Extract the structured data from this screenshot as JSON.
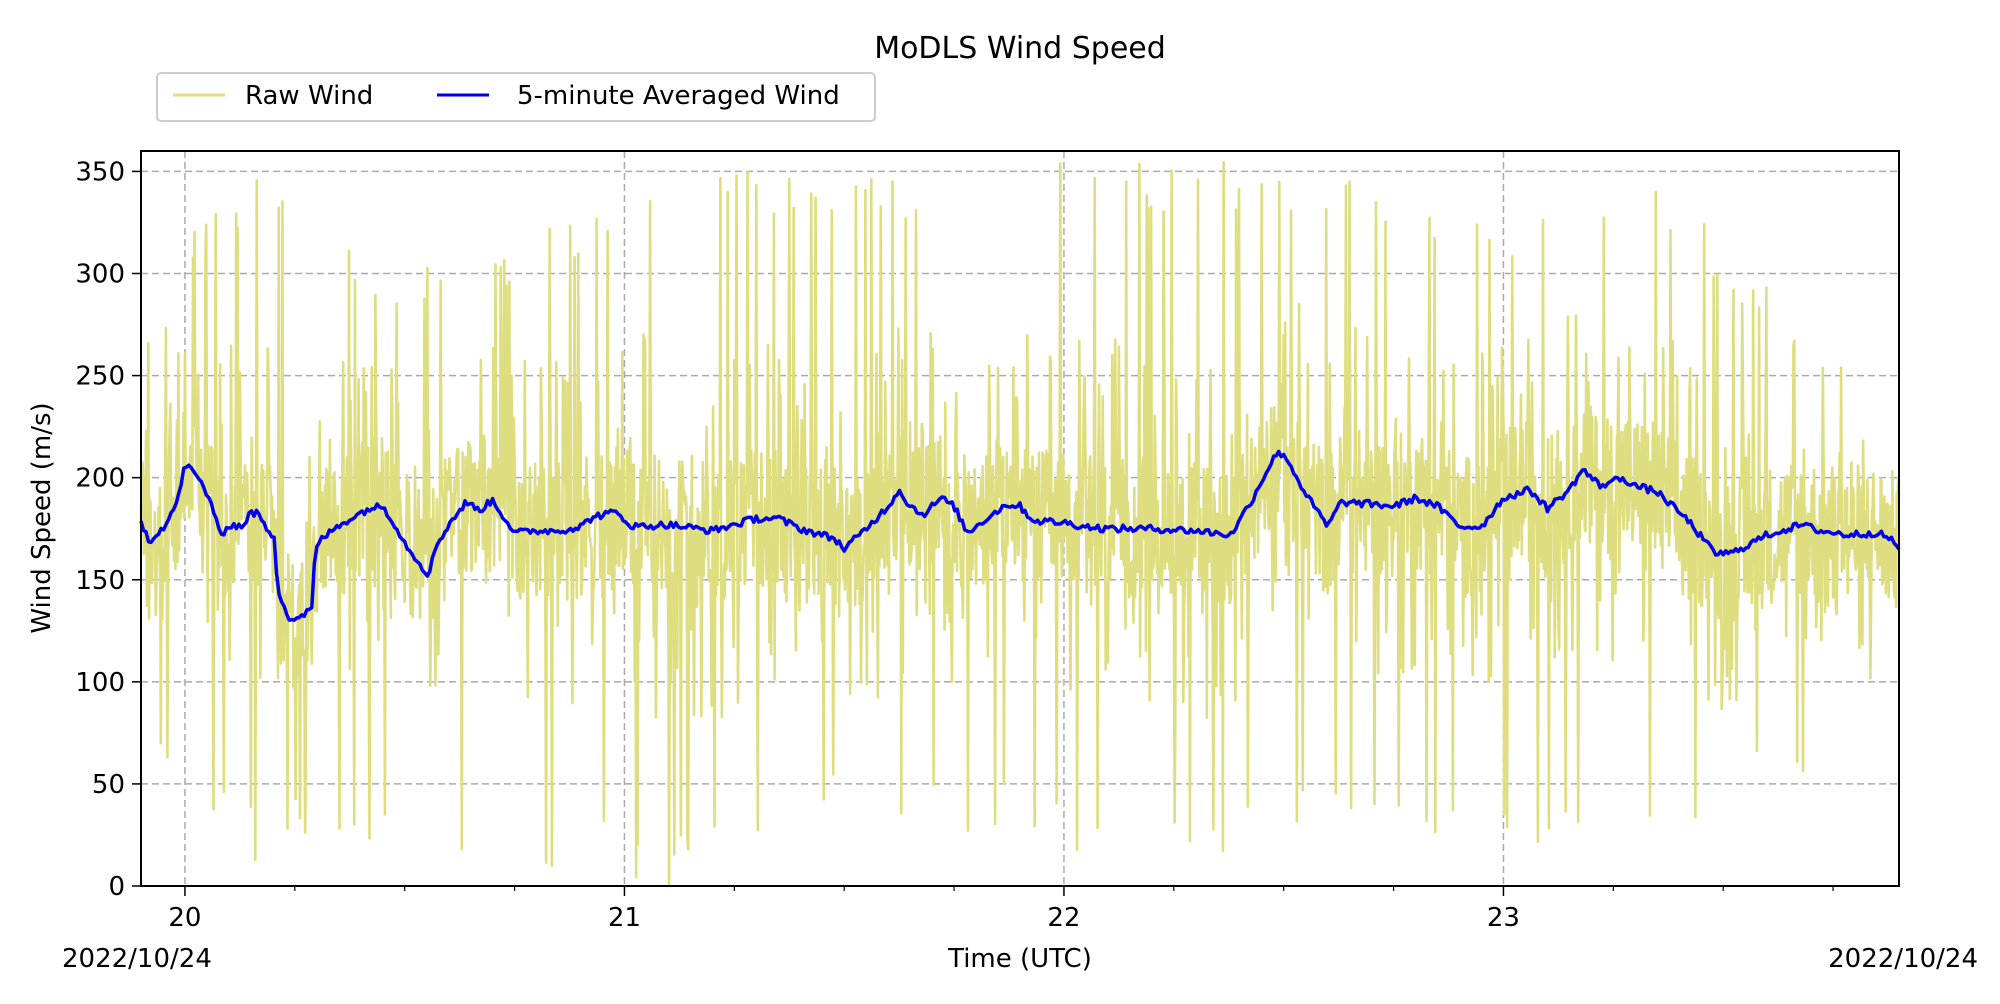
{
  "chart_data": {
    "type": "line",
    "title": "MoDLS Wind Speed",
    "xlabel": "Time (UTC)",
    "ylabel": "Wind Speed (m/s)",
    "x_range_days": [
      19.9,
      23.9
    ],
    "ylim": [
      0,
      360
    ],
    "y_ticks": [
      0,
      50,
      100,
      150,
      200,
      250,
      300,
      350
    ],
    "x_ticks": [
      {
        "value": 20,
        "label": "20"
      },
      {
        "value": 21,
        "label": "21"
      },
      {
        "value": 22,
        "label": "22"
      },
      {
        "value": 23,
        "label": "23"
      }
    ],
    "x_minor_step_days": 0.25,
    "date_left": "2022/10/24",
    "date_right": "2022/10/24",
    "grid": true,
    "legend": {
      "placement": "top-left, above plot",
      "columns": 2
    },
    "series": [
      {
        "name": "Raw Wind",
        "color": "#dede80",
        "style": "dense noisy line",
        "envelope": [
          {
            "x": 19.9,
            "low": 90,
            "high": 260
          },
          {
            "x": 20.0,
            "low": 40,
            "high": 325
          },
          {
            "x": 20.2,
            "low": 0,
            "high": 355
          },
          {
            "x": 20.5,
            "low": 20,
            "high": 300
          },
          {
            "x": 20.9,
            "low": 5,
            "high": 330
          },
          {
            "x": 21.1,
            "low": 0,
            "high": 355
          },
          {
            "x": 21.5,
            "low": 30,
            "high": 350
          },
          {
            "x": 21.9,
            "low": 20,
            "high": 355
          },
          {
            "x": 22.3,
            "low": 5,
            "high": 355
          },
          {
            "x": 22.6,
            "low": 30,
            "high": 355
          },
          {
            "x": 23.0,
            "low": 15,
            "high": 330
          },
          {
            "x": 23.3,
            "low": 25,
            "high": 355
          },
          {
            "x": 23.7,
            "low": 45,
            "high": 280
          },
          {
            "x": 23.9,
            "low": 125,
            "high": 205
          }
        ]
      },
      {
        "name": "5-minute Averaged Wind",
        "color": "#0000ee",
        "points": [
          [
            19.9,
            178
          ],
          [
            19.92,
            169
          ],
          [
            19.96,
            178
          ],
          [
            19.985,
            190
          ],
          [
            20.0,
            207
          ],
          [
            20.03,
            200
          ],
          [
            20.06,
            188
          ],
          [
            20.08,
            171
          ],
          [
            20.1,
            177
          ],
          [
            20.13,
            176
          ],
          [
            20.15,
            183
          ],
          [
            20.17,
            182
          ],
          [
            20.19,
            172
          ],
          [
            20.205,
            172
          ],
          [
            20.21,
            146
          ],
          [
            20.24,
            130
          ],
          [
            20.27,
            133
          ],
          [
            20.29,
            136
          ],
          [
            20.295,
            162
          ],
          [
            20.31,
            170
          ],
          [
            20.36,
            178
          ],
          [
            20.42,
            185
          ],
          [
            20.45,
            186
          ],
          [
            20.47,
            180
          ],
          [
            20.5,
            168
          ],
          [
            20.555,
            152
          ],
          [
            20.57,
            166
          ],
          [
            20.6,
            177
          ],
          [
            20.64,
            188
          ],
          [
            20.67,
            184
          ],
          [
            20.7,
            189
          ],
          [
            20.75,
            173
          ],
          [
            20.8,
            174
          ],
          [
            20.85,
            174
          ],
          [
            20.9,
            176
          ],
          [
            20.93,
            181
          ],
          [
            20.98,
            183
          ],
          [
            21.02,
            176
          ],
          [
            21.1,
            177
          ],
          [
            21.2,
            174
          ],
          [
            21.3,
            180
          ],
          [
            21.35,
            180
          ],
          [
            21.4,
            175
          ],
          [
            21.48,
            170
          ],
          [
            21.5,
            165
          ],
          [
            21.55,
            175
          ],
          [
            21.6,
            186
          ],
          [
            21.625,
            194
          ],
          [
            21.65,
            186
          ],
          [
            21.68,
            182
          ],
          [
            21.72,
            190
          ],
          [
            21.75,
            186
          ],
          [
            21.78,
            173
          ],
          [
            21.83,
            181
          ],
          [
            21.87,
            187
          ],
          [
            21.9,
            186
          ],
          [
            21.93,
            179
          ],
          [
            22.0,
            178
          ],
          [
            22.05,
            176
          ],
          [
            22.1,
            175
          ],
          [
            22.2,
            175
          ],
          [
            22.3,
            174
          ],
          [
            22.38,
            172
          ],
          [
            22.43,
            190
          ],
          [
            22.48,
            211
          ],
          [
            22.5,
            212
          ],
          [
            22.55,
            192
          ],
          [
            22.6,
            176
          ],
          [
            22.63,
            188
          ],
          [
            22.7,
            187
          ],
          [
            22.75,
            186
          ],
          [
            22.8,
            190
          ],
          [
            22.85,
            186
          ],
          [
            22.9,
            176
          ],
          [
            22.95,
            176
          ],
          [
            23.0,
            190
          ],
          [
            23.06,
            194
          ],
          [
            23.1,
            185
          ],
          [
            23.15,
            194
          ],
          [
            23.18,
            204
          ],
          [
            23.22,
            196
          ],
          [
            23.27,
            200
          ],
          [
            23.3,
            196
          ],
          [
            23.35,
            193
          ],
          [
            23.42,
            179
          ],
          [
            23.48,
            163
          ],
          [
            23.52,
            163
          ],
          [
            23.6,
            172
          ],
          [
            23.68,
            177
          ],
          [
            23.72,
            174
          ],
          [
            23.78,
            172
          ],
          [
            23.85,
            173
          ],
          [
            23.88,
            170
          ],
          [
            23.9,
            166
          ]
        ]
      }
    ]
  }
}
